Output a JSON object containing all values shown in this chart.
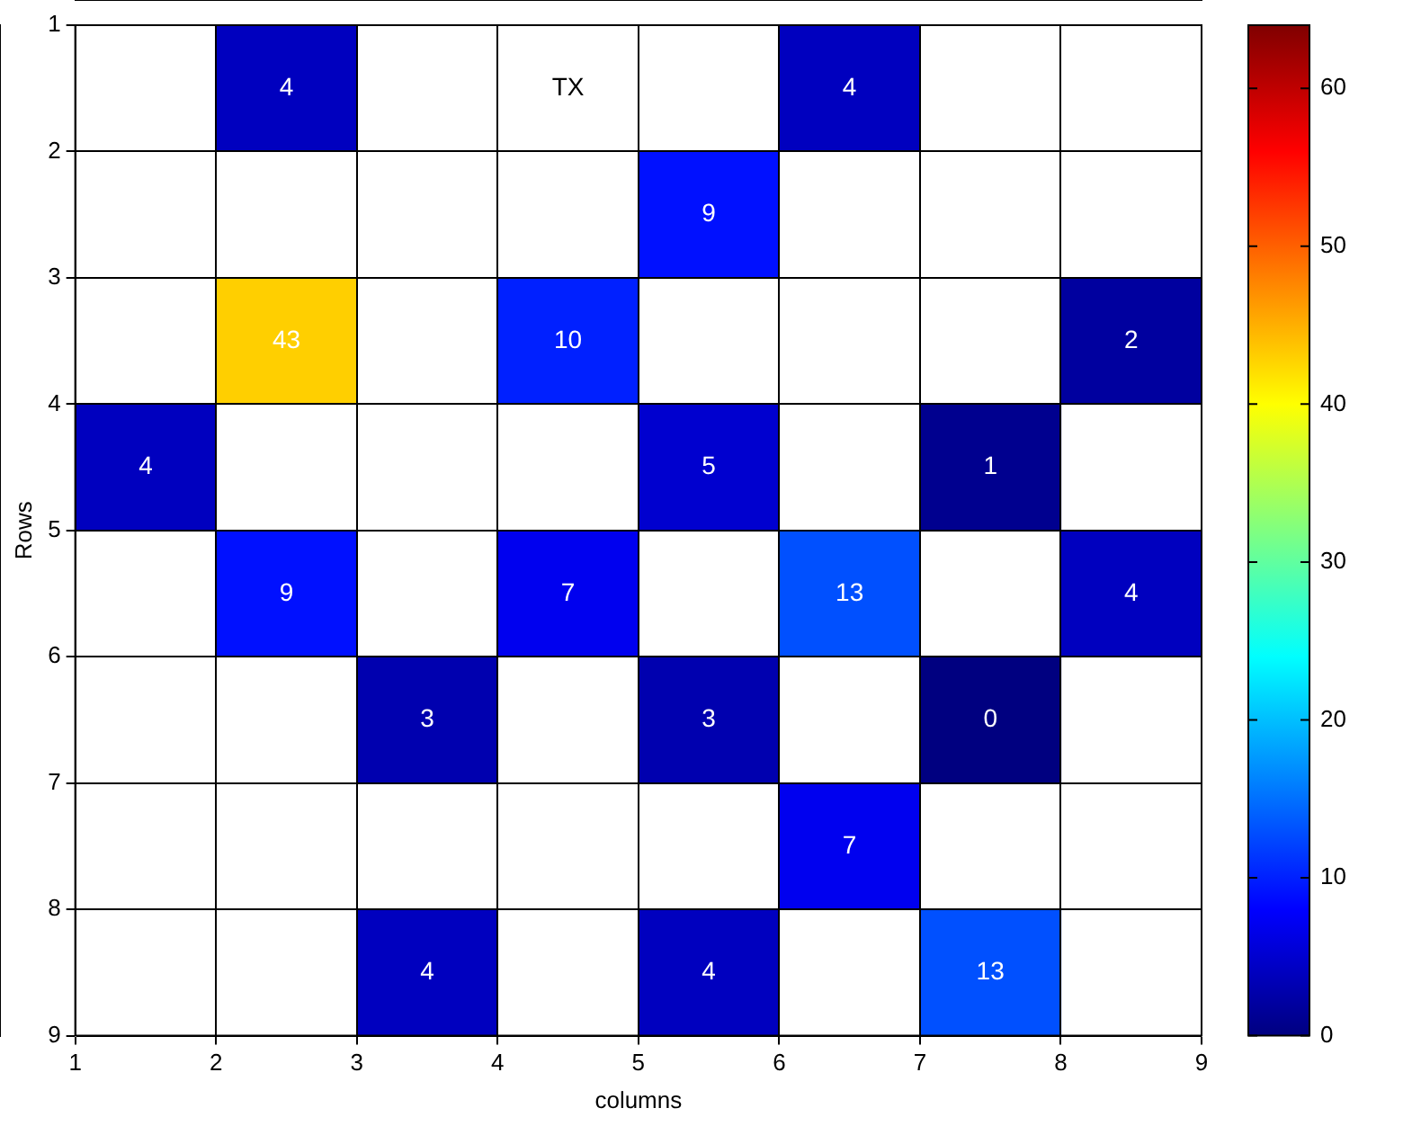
{
  "chart_data": {
    "type": "heatmap",
    "xlabel": "columns",
    "ylabel": "Rows",
    "xlim": [
      1,
      9
    ],
    "xticks": [
      1,
      2,
      3,
      4,
      5,
      6,
      7,
      8,
      9
    ],
    "ylim": [
      9,
      1
    ],
    "yticks": [
      1,
      2,
      3,
      4,
      5,
      6,
      7,
      8,
      9
    ],
    "cells": [
      [
        null,
        4,
        null,
        null,
        null,
        4,
        null,
        null
      ],
      [
        null,
        null,
        null,
        null,
        9,
        null,
        null,
        null
      ],
      [
        null,
        43,
        null,
        10,
        null,
        null,
        null,
        2
      ],
      [
        4,
        null,
        null,
        null,
        5,
        null,
        1,
        null
      ],
      [
        null,
        9,
        null,
        7,
        null,
        13,
        null,
        4
      ],
      [
        null,
        null,
        3,
        null,
        3,
        null,
        0,
        null
      ],
      [
        null,
        null,
        null,
        null,
        null,
        7,
        null,
        null
      ],
      [
        null,
        null,
        4,
        null,
        4,
        null,
        13,
        null
      ]
    ],
    "cell_labels": [
      [
        null,
        "4",
        null,
        "TX",
        null,
        "4",
        null,
        null
      ],
      [
        null,
        null,
        null,
        null,
        "9",
        null,
        null,
        null
      ],
      [
        null,
        "43",
        null,
        "10",
        null,
        null,
        null,
        "2"
      ],
      [
        "4",
        null,
        null,
        null,
        "5",
        null,
        "1",
        null
      ],
      [
        null,
        "9",
        null,
        "7",
        null,
        "13",
        null,
        "4"
      ],
      [
        null,
        null,
        "3",
        null,
        "3",
        null,
        "0",
        null
      ],
      [
        null,
        null,
        null,
        null,
        null,
        "7",
        null,
        null
      ],
      [
        null,
        null,
        "4",
        null,
        "4",
        null,
        "13",
        null
      ]
    ],
    "clim": [
      0,
      64
    ],
    "cticks": [
      0,
      10,
      20,
      30,
      40,
      50,
      60
    ],
    "grid": true
  }
}
